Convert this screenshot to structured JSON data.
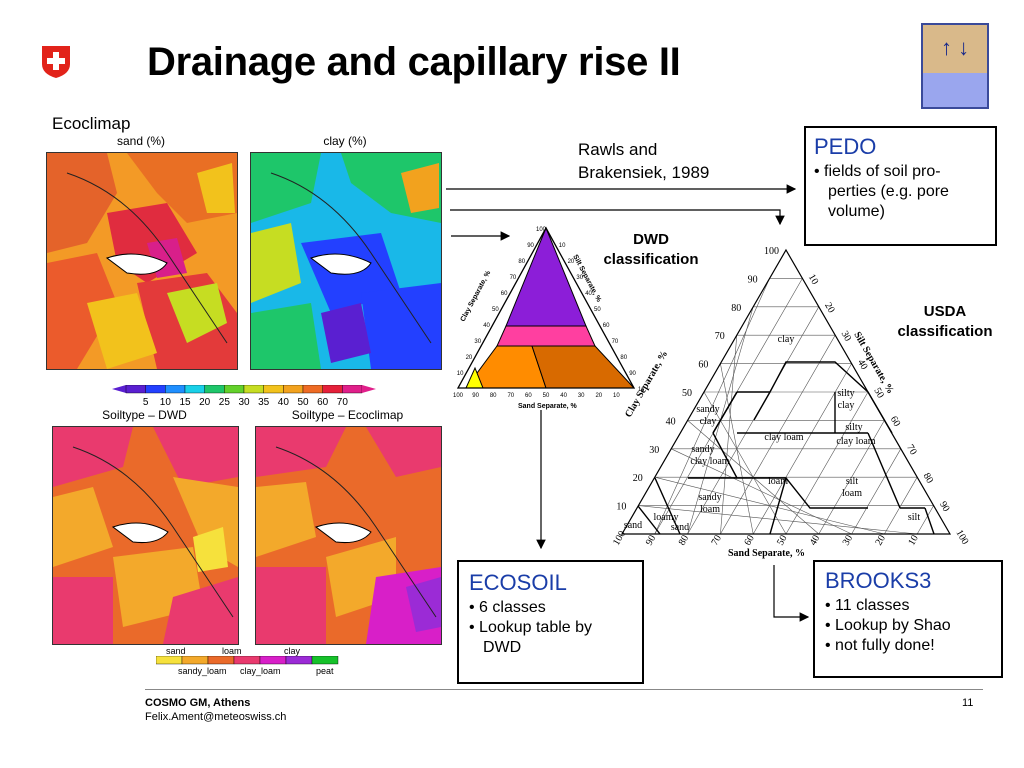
{
  "slide": {
    "title": "Drainage and capillary rise II",
    "page_number": "11"
  },
  "logo": {
    "icon": "swiss-cross-icon",
    "color": "#e2231a"
  },
  "ecoclimap_label": "Ecoclimap",
  "maps": {
    "sand_title": "sand (%)",
    "clay_title": "clay (%)",
    "soiltype_dwd_title": "Soiltype – DWD",
    "soiltype_eco_title": "Soiltype – Ecoclimap"
  },
  "colorbar": {
    "ticks": [
      "5",
      "10",
      "15",
      "20",
      "25",
      "30",
      "35",
      "40",
      "50",
      "60",
      "70"
    ],
    "colors": [
      "#5a1fd1",
      "#2340ff",
      "#1f8fff",
      "#19d0e8",
      "#1ec66a",
      "#63d12a",
      "#c6dd22",
      "#f2c21c",
      "#f2a21e",
      "#ee6b24",
      "#e5203a",
      "#e01f8a"
    ]
  },
  "soil_legend": {
    "top": [
      "sand",
      "loam",
      "clay"
    ],
    "bottom": [
      "sandy_loam",
      "clay_loam",
      "peat"
    ],
    "colors": [
      "#f6e13c",
      "#f3a92b",
      "#ea6a2a",
      "#e93a6e",
      "#d81fc8",
      "#9b2bd6",
      "#16c12a"
    ]
  },
  "rawls": {
    "line1": "Rawls and",
    "line2": "Brakensiek, 1989"
  },
  "pedo": {
    "title": "PEDO",
    "items": [
      "fields of soil pro-perties (e.g. pore volume)"
    ]
  },
  "dwd_label": {
    "line1": "DWD",
    "line2": "classification"
  },
  "usda_label": {
    "line1": "USDA",
    "line2": "classification"
  },
  "dwd_triangle": {
    "colors": {
      "clay": "#8c1ed8",
      "pink": "#ff3fa0",
      "orange": "#ff8c00",
      "brown": "#d86a00",
      "yellow": "#ffff00"
    },
    "clay_axis": "Clay Separate, %",
    "silt_axis": "Silt Separate, %",
    "sand_axis": "Sand Separate, %",
    "ticks": [
      "100",
      "90",
      "80",
      "70",
      "60",
      "50",
      "40",
      "30",
      "20",
      "10"
    ]
  },
  "usda_triangle": {
    "clay_axis": "Clay Separate, %",
    "silt_axis": "Silt Separate, %",
    "sand_axis": "Sand Separate, %",
    "ticks_left": [
      "100",
      "90",
      "80",
      "70",
      "60",
      "50",
      "40",
      "30",
      "20",
      "10"
    ],
    "ticks_right": [
      "10",
      "20",
      "30",
      "40",
      "50",
      "60",
      "70",
      "80",
      "90",
      "100"
    ],
    "ticks_bottom": [
      "100",
      "90",
      "80",
      "70",
      "60",
      "50",
      "40",
      "30",
      "20",
      "10"
    ],
    "classes": {
      "clay": "clay",
      "silty_clay_1": "silty",
      "silty_clay_2": "clay",
      "sandy_clay_1": "sandy",
      "sandy_clay_2": "clay",
      "clay_loam": "clay loam",
      "silty_clay_loam_1": "silty",
      "silty_clay_loam_2": "clay loam",
      "sandy_clay_loam_1": "sandy",
      "sandy_clay_loam_2": "clay loam",
      "loam": "loam",
      "silt_loam_1": "silt",
      "silt_loam_2": "loam",
      "sandy_loam_1": "sandy",
      "sandy_loam_2": "loam",
      "loamy_sand_1": "loamy",
      "loamy_sand_2": "sand",
      "sand": "sand",
      "silt": "silt"
    }
  },
  "ecosoil": {
    "title": "ECOSOIL",
    "items": [
      "6 classes",
      "Lookup table by DWD"
    ]
  },
  "brooks": {
    "title": "BROOKS3",
    "items": [
      "11 classes",
      "Lookup by Shao",
      "not fully done!"
    ]
  },
  "footer": {
    "line1": "COSMO GM, Athens",
    "line2": "Felix.Ament@meteoswiss.ch"
  },
  "top_right_icon": {
    "name": "soil-layers-icon",
    "arrows": [
      "↑",
      "↓"
    ]
  }
}
